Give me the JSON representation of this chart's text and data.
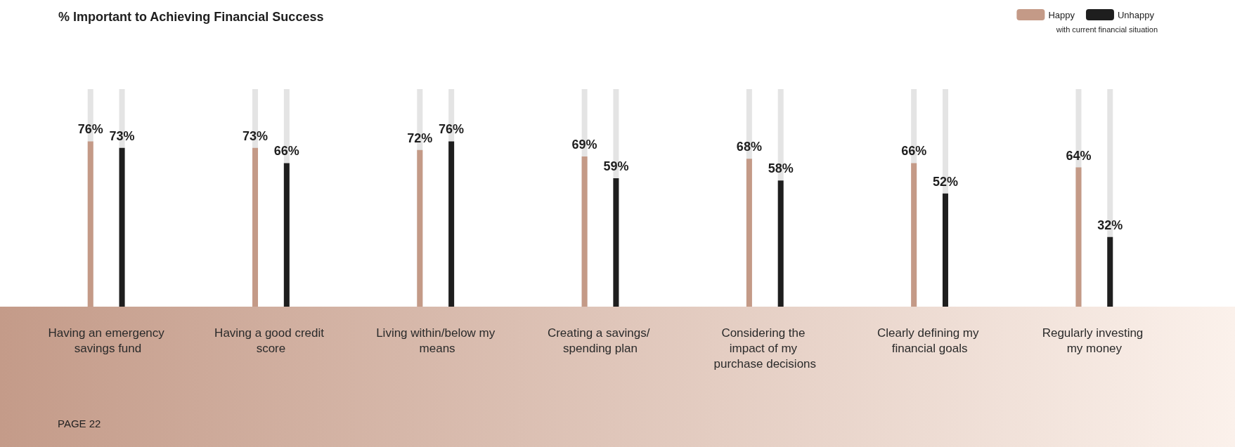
{
  "chart_data": {
    "type": "bar",
    "title": "% Important to Achieving Financial Success",
    "categories": [
      "Having an emergency savings fund",
      "Having a good credit score",
      "Living within/below my means",
      "Creating a savings/ spending plan",
      "Considering the impact of my purchase decisions",
      "Clearly defining my financial goals",
      "Regularly investing my money"
    ],
    "series": [
      {
        "name": "Happy",
        "color": "#c49a87",
        "values": [
          76,
          73,
          72,
          69,
          68,
          66,
          64
        ],
        "value_labels": [
          "76%",
          "73%",
          "72%",
          "69%",
          "68%",
          "66%",
          "64%"
        ]
      },
      {
        "name": "Unhappy",
        "color": "#1e1e1e",
        "values": [
          73,
          66,
          76,
          59,
          58,
          52,
          32
        ],
        "value_labels": [
          "73%",
          "66%",
          "76%",
          "59%",
          "58%",
          "52%",
          "32%"
        ]
      }
    ],
    "legend": "top right",
    "legend_title": "with current financial situation",
    "ylim": [
      0,
      100
    ],
    "tick_labels": "x",
    "grid": false,
    "annotations": [
      "PAGE 22"
    ]
  }
}
